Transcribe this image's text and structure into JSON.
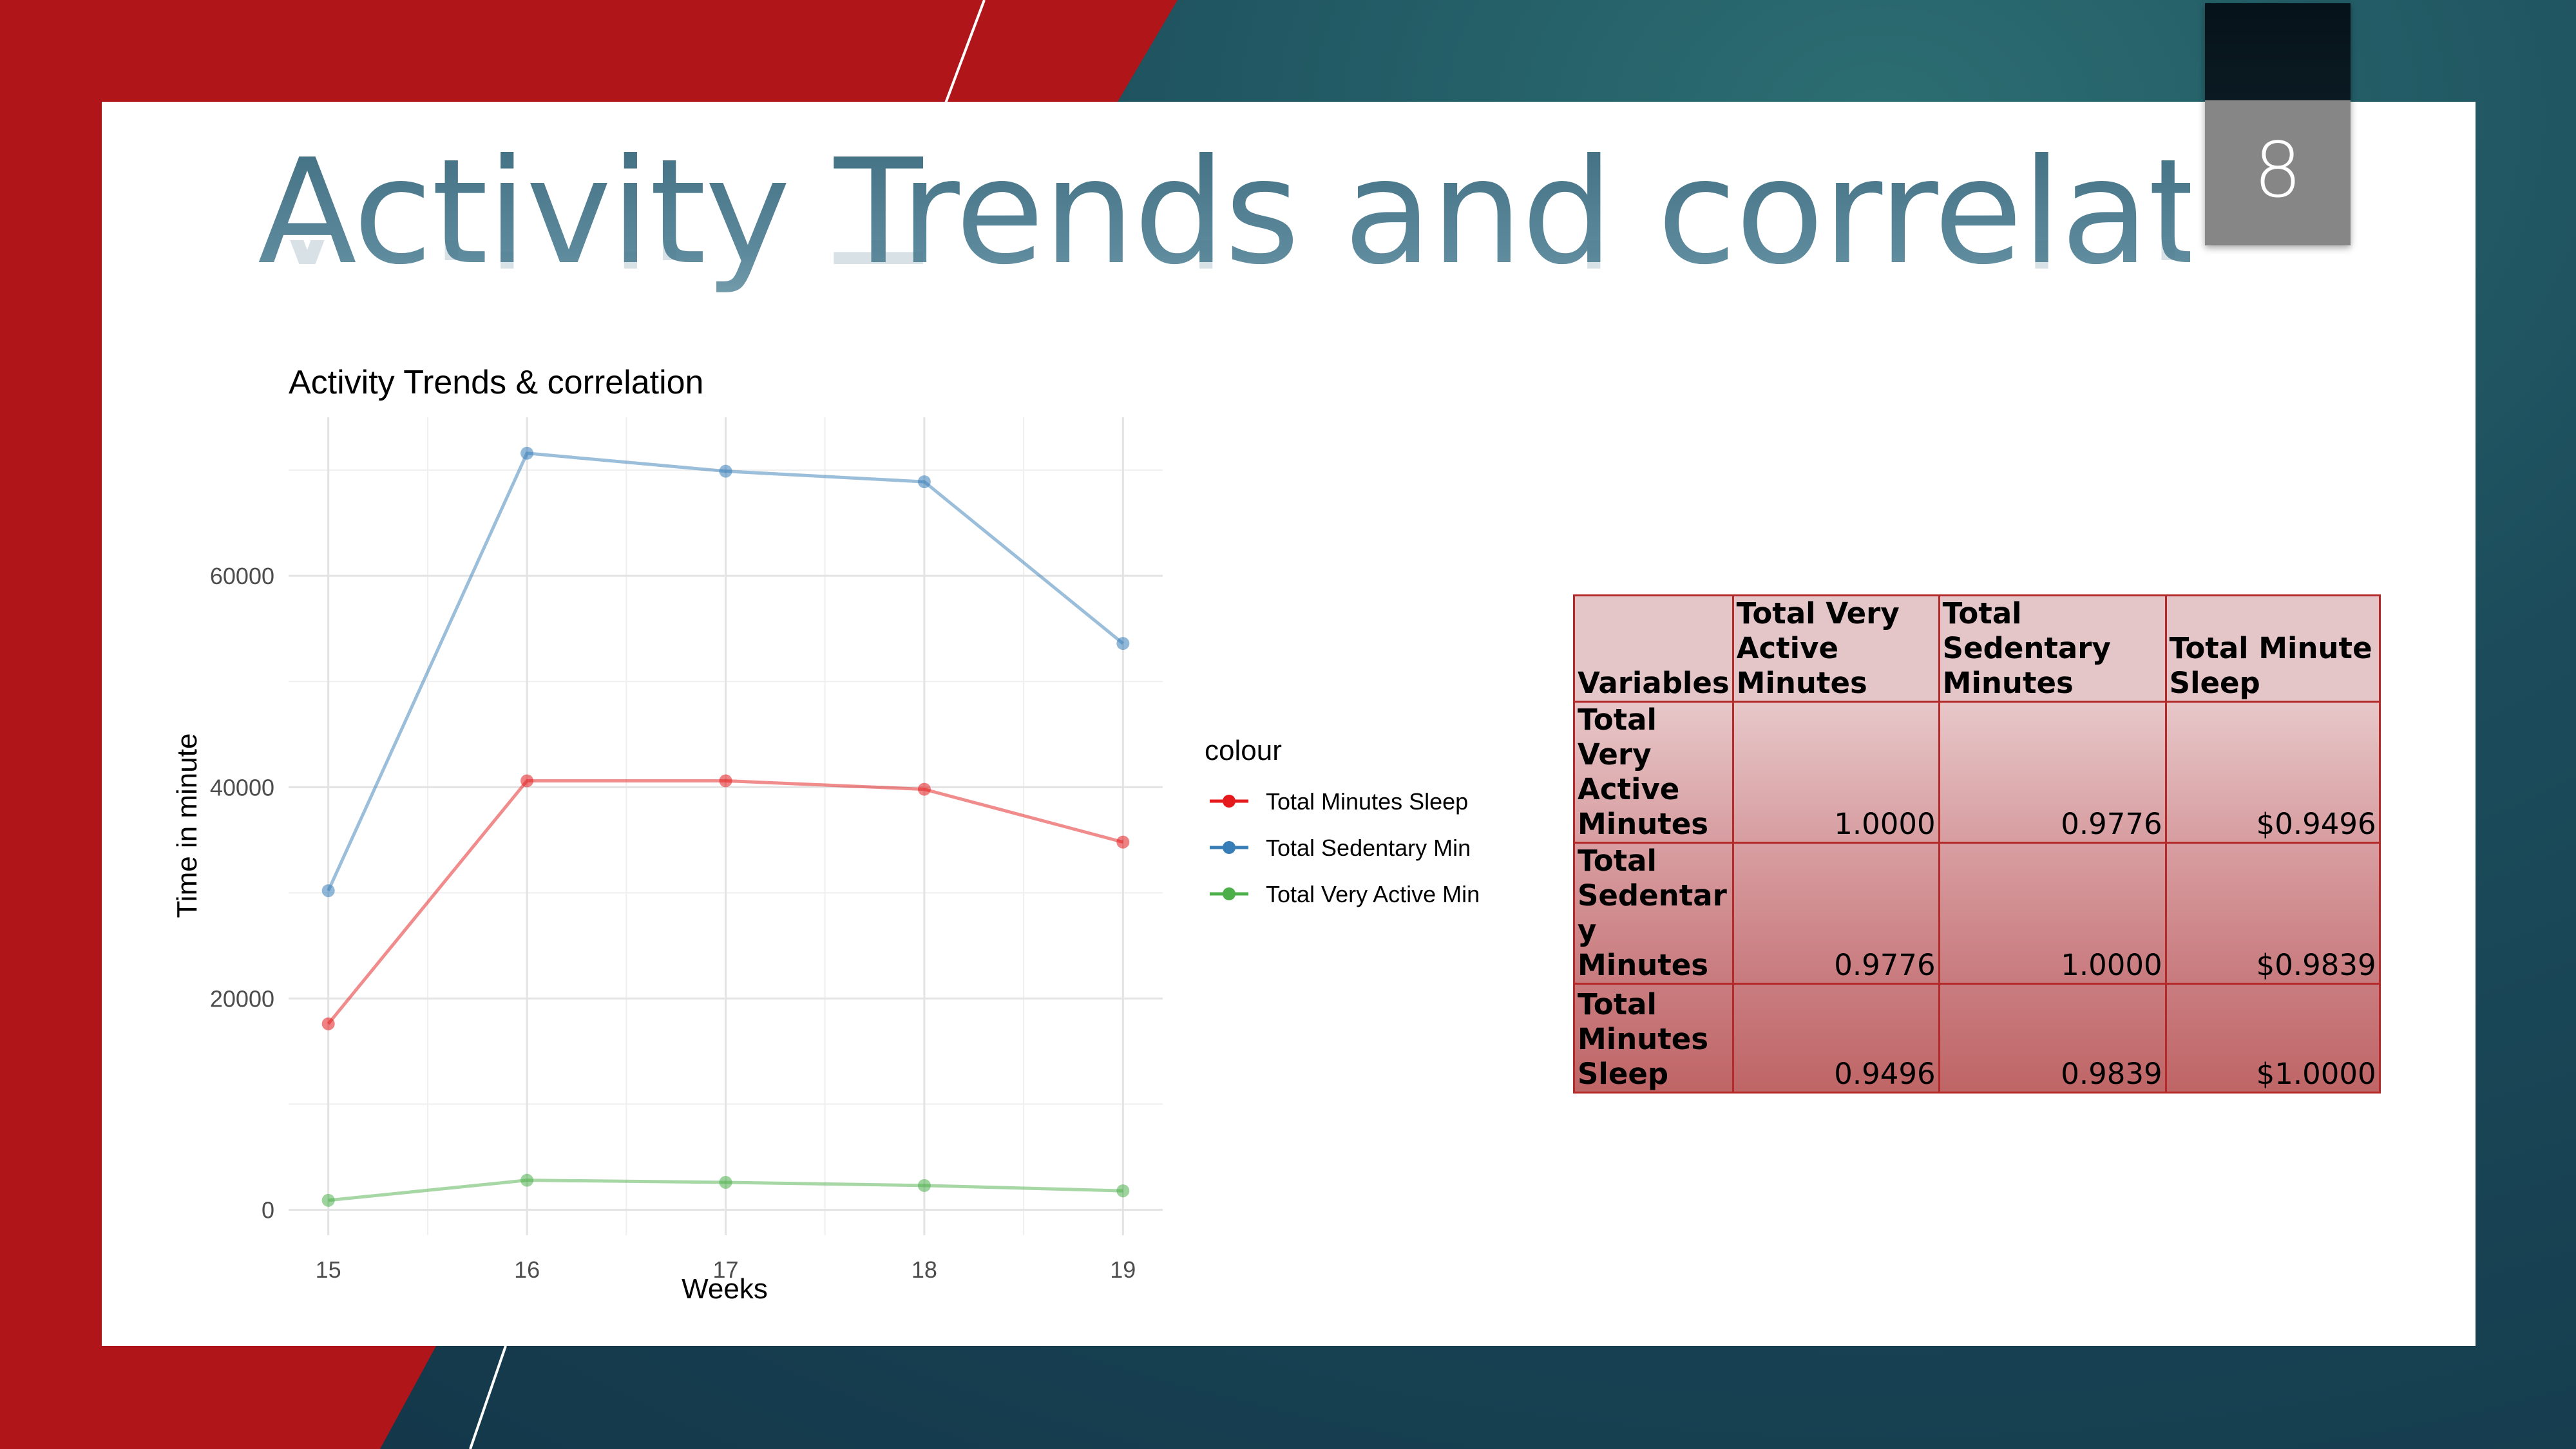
{
  "slide": {
    "title": "Activity Trends and correlation",
    "number": "8",
    "colors": {
      "accent_red": "#b01519",
      "background_teal": "#1c4d5c",
      "title": "#4f7d8f"
    }
  },
  "chart_data": {
    "type": "line",
    "title": "Activity Trends & correlation",
    "xlabel": "Weeks",
    "ylabel": "Time in minute",
    "x": [
      15,
      16,
      17,
      18,
      19
    ],
    "x_ticks": [
      "15",
      "16",
      "17",
      "18",
      "19"
    ],
    "y_ticks": [
      "0",
      "20000",
      "40000",
      "60000"
    ],
    "y_tick_values": [
      0,
      20000,
      40000,
      60000
    ],
    "xlim": [
      14.8,
      19.2
    ],
    "ylim": [
      -2400,
      75000
    ],
    "grid": true,
    "legend_title": "colour",
    "legend_position": "right",
    "series": [
      {
        "name": "Total Minutes Sleep",
        "color": "#e41a1c",
        "values": [
          17600,
          40600,
          40600,
          39800,
          34800
        ]
      },
      {
        "name": "Total Sedentary Min",
        "color": "#377eb8",
        "values": [
          30200,
          71600,
          69900,
          68900,
          53600
        ]
      },
      {
        "name": "Total Very Active Min",
        "color": "#4daf4a",
        "values": [
          900,
          2800,
          2600,
          2300,
          1800
        ]
      }
    ]
  },
  "correlation_table": {
    "header": [
      "Variables",
      "Total Very Active Minutes",
      "Total Sedentary Minutes",
      "Total Minute Sleep"
    ],
    "rows": [
      {
        "label": "Total Very Active Minutes",
        "cells": [
          "1.0000",
          "0.9776",
          "$0.9496"
        ]
      },
      {
        "label": "Total Sedentar y Minutes",
        "cells": [
          "0.9776",
          "1.0000",
          "$0.9839"
        ]
      },
      {
        "label": "Total Minutes Sleep",
        "cells": [
          "0.9496",
          "0.9839",
          "$1.0000"
        ]
      }
    ]
  }
}
